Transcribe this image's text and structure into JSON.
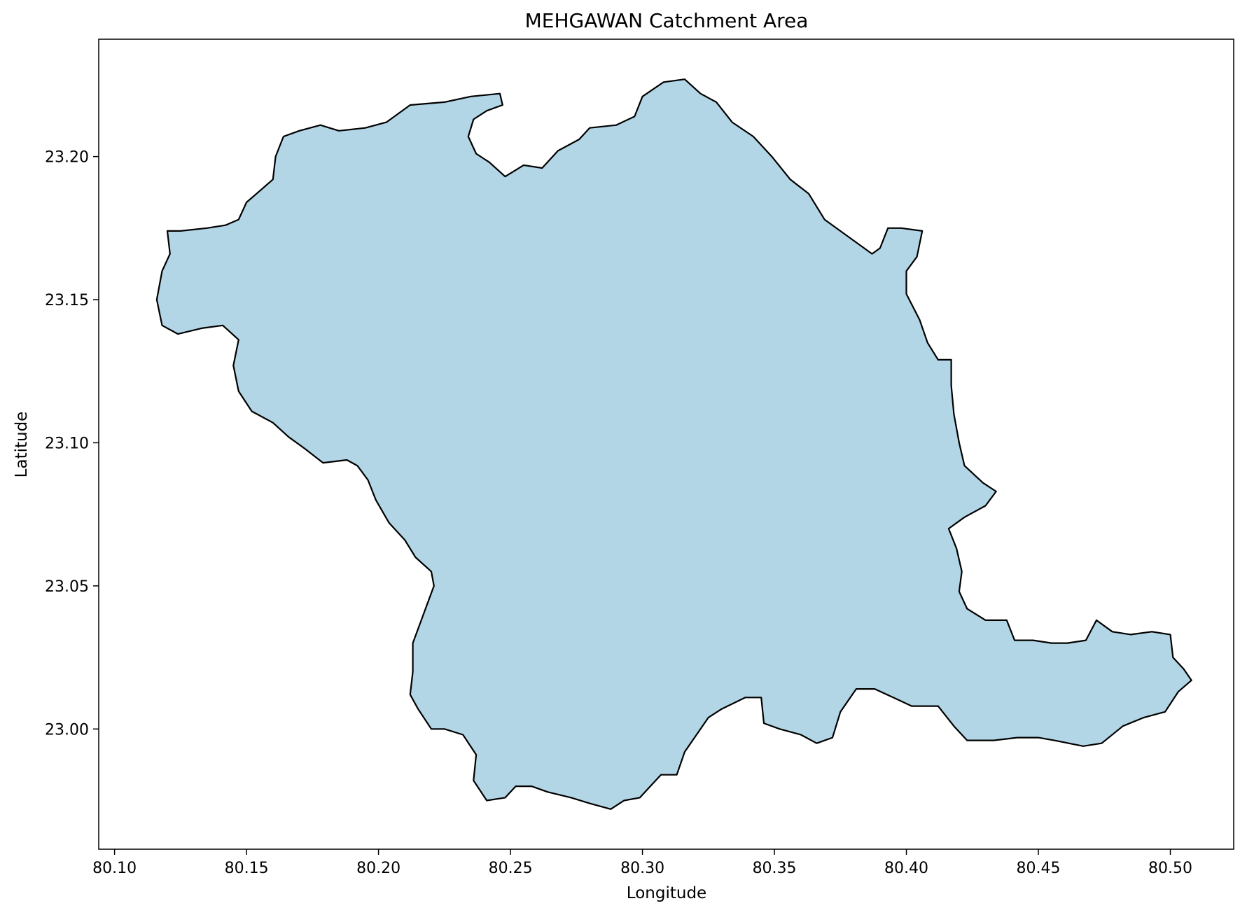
{
  "chart_data": {
    "type": "map",
    "title": "MEHGAWAN Catchment Area",
    "xlabel": "Longitude",
    "ylabel": "Latitude",
    "xlim": [
      80.094,
      80.524
    ],
    "ylim": [
      22.958,
      23.241
    ],
    "x_ticks": [
      80.1,
      80.15,
      80.2,
      80.25,
      80.3,
      80.35,
      80.4,
      80.45,
      80.5
    ],
    "x_tick_labels": [
      "80.10",
      "80.15",
      "80.20",
      "80.25",
      "80.30",
      "80.35",
      "80.40",
      "80.45",
      "80.50"
    ],
    "y_ticks": [
      23.0,
      23.05,
      23.1,
      23.15,
      23.2
    ],
    "y_tick_labels": [
      "23.00",
      "23.05",
      "23.10",
      "23.15",
      "23.20"
    ],
    "grid": false,
    "fill_color": "#b3d6e6",
    "edge_color": "#000000",
    "boundary": [
      [
        80.12,
        23.174
      ],
      [
        80.125,
        23.174
      ],
      [
        80.135,
        23.175
      ],
      [
        80.142,
        23.176
      ],
      [
        80.147,
        23.178
      ],
      [
        80.15,
        23.184
      ],
      [
        80.155,
        23.188
      ],
      [
        80.16,
        23.192
      ],
      [
        80.161,
        23.2
      ],
      [
        80.164,
        23.207
      ],
      [
        80.17,
        23.209
      ],
      [
        80.178,
        23.211
      ],
      [
        80.185,
        23.209
      ],
      [
        80.195,
        23.21
      ],
      [
        80.203,
        23.212
      ],
      [
        80.212,
        23.218
      ],
      [
        80.225,
        23.219
      ],
      [
        80.235,
        23.221
      ],
      [
        80.246,
        23.222
      ],
      [
        80.247,
        23.218
      ],
      [
        80.241,
        23.216
      ],
      [
        80.236,
        23.213
      ],
      [
        80.234,
        23.207
      ],
      [
        80.237,
        23.201
      ],
      [
        80.242,
        23.198
      ],
      [
        80.248,
        23.193
      ],
      [
        80.255,
        23.197
      ],
      [
        80.262,
        23.196
      ],
      [
        80.268,
        23.202
      ],
      [
        80.276,
        23.206
      ],
      [
        80.28,
        23.21
      ],
      [
        80.29,
        23.211
      ],
      [
        80.297,
        23.214
      ],
      [
        80.3,
        23.221
      ],
      [
        80.308,
        23.226
      ],
      [
        80.316,
        23.227
      ],
      [
        80.322,
        23.222
      ],
      [
        80.328,
        23.219
      ],
      [
        80.334,
        23.212
      ],
      [
        80.342,
        23.207
      ],
      [
        80.349,
        23.2
      ],
      [
        80.356,
        23.192
      ],
      [
        80.363,
        23.187
      ],
      [
        80.369,
        23.178
      ],
      [
        80.378,
        23.172
      ],
      [
        80.387,
        23.166
      ],
      [
        80.39,
        23.168
      ],
      [
        80.393,
        23.175
      ],
      [
        80.398,
        23.175
      ],
      [
        80.406,
        23.174
      ],
      [
        80.404,
        23.165
      ],
      [
        80.4,
        23.16
      ],
      [
        80.4,
        23.152
      ],
      [
        80.405,
        23.143
      ],
      [
        80.408,
        23.135
      ],
      [
        80.412,
        23.129
      ],
      [
        80.417,
        23.129
      ],
      [
        80.417,
        23.12
      ],
      [
        80.418,
        23.11
      ],
      [
        80.42,
        23.1
      ],
      [
        80.422,
        23.092
      ],
      [
        80.429,
        23.086
      ],
      [
        80.434,
        23.083
      ],
      [
        80.43,
        23.078
      ],
      [
        80.422,
        23.074
      ],
      [
        80.416,
        23.07
      ],
      [
        80.419,
        23.063
      ],
      [
        80.421,
        23.055
      ],
      [
        80.42,
        23.048
      ],
      [
        80.423,
        23.042
      ],
      [
        80.43,
        23.038
      ],
      [
        80.438,
        23.038
      ],
      [
        80.441,
        23.031
      ],
      [
        80.448,
        23.031
      ],
      [
        80.455,
        23.03
      ],
      [
        80.461,
        23.03
      ],
      [
        80.468,
        23.031
      ],
      [
        80.472,
        23.038
      ],
      [
        80.478,
        23.034
      ],
      [
        80.485,
        23.033
      ],
      [
        80.493,
        23.034
      ],
      [
        80.5,
        23.033
      ],
      [
        80.501,
        23.025
      ],
      [
        80.505,
        23.021
      ],
      [
        80.508,
        23.017
      ],
      [
        80.503,
        23.013
      ],
      [
        80.498,
        23.006
      ],
      [
        80.49,
        23.004
      ],
      [
        80.482,
        23.001
      ],
      [
        80.474,
        22.995
      ],
      [
        80.467,
        22.994
      ],
      [
        80.456,
        22.996
      ],
      [
        80.45,
        22.997
      ],
      [
        80.442,
        22.997
      ],
      [
        80.433,
        22.996
      ],
      [
        80.423,
        22.996
      ],
      [
        80.418,
        23.001
      ],
      [
        80.412,
        23.008
      ],
      [
        80.402,
        23.008
      ],
      [
        80.395,
        23.011
      ],
      [
        80.388,
        23.014
      ],
      [
        80.381,
        23.014
      ],
      [
        80.375,
        23.006
      ],
      [
        80.372,
        22.997
      ],
      [
        80.366,
        22.995
      ],
      [
        80.36,
        22.998
      ],
      [
        80.352,
        23.0
      ],
      [
        80.346,
        23.002
      ],
      [
        80.345,
        23.011
      ],
      [
        80.339,
        23.011
      ],
      [
        80.33,
        23.007
      ],
      [
        80.325,
        23.004
      ],
      [
        80.316,
        22.992
      ],
      [
        80.313,
        22.984
      ],
      [
        80.307,
        22.984
      ],
      [
        80.302,
        22.979
      ],
      [
        80.299,
        22.976
      ],
      [
        80.293,
        22.975
      ],
      [
        80.288,
        22.972
      ],
      [
        80.28,
        22.974
      ],
      [
        80.273,
        22.976
      ],
      [
        80.264,
        22.978
      ],
      [
        80.258,
        22.98
      ],
      [
        80.252,
        22.98
      ],
      [
        80.248,
        22.976
      ],
      [
        80.241,
        22.975
      ],
      [
        80.236,
        22.982
      ],
      [
        80.237,
        22.991
      ],
      [
        80.232,
        22.998
      ],
      [
        80.225,
        23.0
      ],
      [
        80.22,
        23.0
      ],
      [
        80.215,
        23.007
      ],
      [
        80.212,
        23.012
      ],
      [
        80.213,
        23.02
      ],
      [
        80.213,
        23.03
      ],
      [
        80.217,
        23.04
      ],
      [
        80.221,
        23.05
      ],
      [
        80.22,
        23.055
      ],
      [
        80.214,
        23.06
      ],
      [
        80.21,
        23.066
      ],
      [
        80.204,
        23.072
      ],
      [
        80.199,
        23.08
      ],
      [
        80.196,
        23.087
      ],
      [
        80.192,
        23.092
      ],
      [
        80.188,
        23.094
      ],
      [
        80.179,
        23.093
      ],
      [
        80.172,
        23.098
      ],
      [
        80.166,
        23.102
      ],
      [
        80.16,
        23.107
      ],
      [
        80.152,
        23.111
      ],
      [
        80.147,
        23.118
      ],
      [
        80.145,
        23.127
      ],
      [
        80.147,
        23.136
      ],
      [
        80.141,
        23.141
      ],
      [
        80.133,
        23.14
      ],
      [
        80.124,
        23.138
      ],
      [
        80.118,
        23.141
      ],
      [
        80.116,
        23.15
      ],
      [
        80.118,
        23.16
      ],
      [
        80.121,
        23.166
      ]
    ]
  }
}
